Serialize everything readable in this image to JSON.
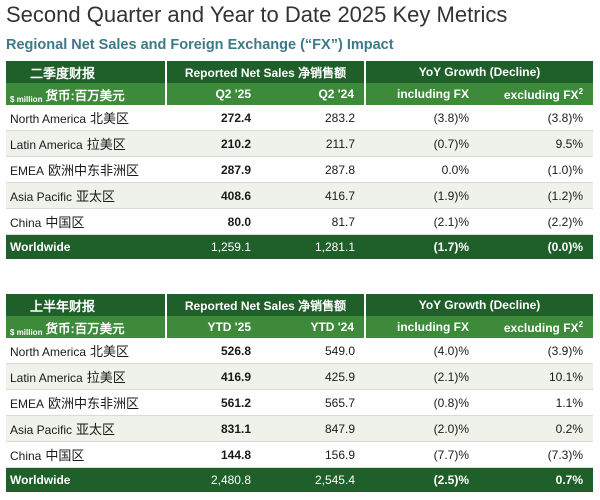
{
  "title": "Second Quarter and Year to Date 2025 Key Metrics",
  "subtitle": "Regional Net Sales and Foreign Exchange (“FX”) Impact",
  "colors": {
    "dark_green": "#1f5f2a",
    "mid_green": "#3d8a3a",
    "row_alt": "#eef2ea",
    "subtitle_teal": "#3b7a87"
  },
  "table1": {
    "segment_label": "二季度财报",
    "group1": "Reported Net Sales 净销售额",
    "group2": "YoY Growth (Decline)",
    "unit_small": "$ million",
    "unit_cn": "货币:百万美元",
    "col1": "Q2 '25",
    "col2": "Q2 '24",
    "col3": "including FX",
    "col4": "excluding FX",
    "col4_sup": "2",
    "rows": [
      {
        "en": "North America",
        "cn": "北美区",
        "v1": "272.4",
        "v2": "283.2",
        "v3": "(3.8)%",
        "v4": "(3.8)%"
      },
      {
        "en": "Latin America",
        "cn": "拉美区",
        "v1": "210.2",
        "v2": "211.7",
        "v3": "(0.7)%",
        "v4": "9.5%"
      },
      {
        "en": "EMEA",
        "cn": "欧洲中东非洲区",
        "v1": "287.9",
        "v2": "287.8",
        "v3": "0.0%",
        "v4": "(1.0)%"
      },
      {
        "en": "Asia Pacific",
        "cn": "亚太区",
        "v1": "408.6",
        "v2": "416.7",
        "v3": "(1.9)%",
        "v4": "(1.2)%"
      },
      {
        "en": "China",
        "cn": "中国区",
        "v1": "80.0",
        "v2": "81.7",
        "v3": "(2.1)%",
        "v4": "(2.2)%"
      }
    ],
    "total": {
      "label": "Worldwide",
      "v1": "1,259.1",
      "v2": "1,281.1",
      "v3": "(1.7)%",
      "v4": "(0.0)%"
    }
  },
  "table2": {
    "segment_label": "上半年财报",
    "group1": "Reported Net Sales 净销售额",
    "group2": "YoY Growth (Decline)",
    "unit_small": "$ million",
    "unit_cn": "货币:百万美元",
    "col1": "YTD '25",
    "col2": "YTD '24",
    "col3": "including FX",
    "col4": "excluding FX",
    "col4_sup": "2",
    "rows": [
      {
        "en": "North America",
        "cn": "北美区",
        "v1": "526.8",
        "v2": "549.0",
        "v3": "(4.0)%",
        "v4": "(3.9)%"
      },
      {
        "en": "Latin America",
        "cn": "拉美区",
        "v1": "416.9",
        "v2": "425.9",
        "v3": "(2.1)%",
        "v4": "10.1%"
      },
      {
        "en": "EMEA",
        "cn": "欧洲中东非洲区",
        "v1": "561.2",
        "v2": "565.7",
        "v3": "(0.8)%",
        "v4": "1.1%"
      },
      {
        "en": "Asia Pacific",
        "cn": "亚太区",
        "v1": "831.1",
        "v2": "847.9",
        "v3": "(2.0)%",
        "v4": "0.2%"
      },
      {
        "en": "China",
        "cn": "中国区",
        "v1": "144.8",
        "v2": "156.9",
        "v3": "(7.7)%",
        "v4": "(7.3)%"
      }
    ],
    "total": {
      "label": "Worldwide",
      "v1": "2,480.8",
      "v2": "2,545.4",
      "v3": "(2.5)%",
      "v4": "0.7%"
    }
  }
}
